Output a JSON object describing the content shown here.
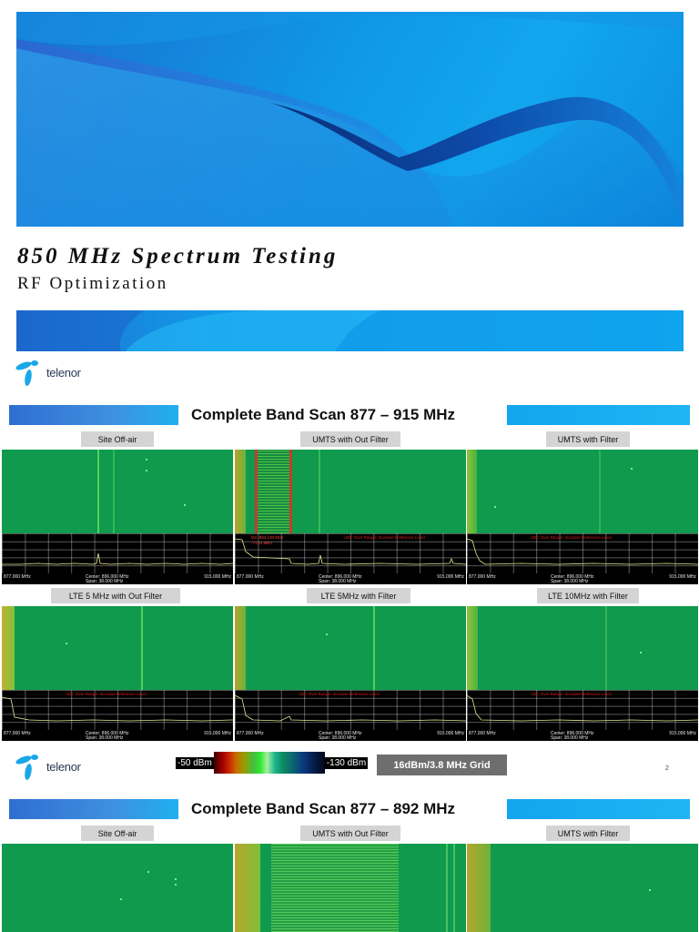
{
  "slide1": {
    "title": "850 MHz Spectrum Testing",
    "subtitle": "RF Optimization",
    "logo_text": "telenor"
  },
  "slide2": {
    "heading": "Complete Band Scan 877 – 915 MHz",
    "panels": [
      {
        "label": "Site Off-air",
        "start": "877.000 MHz",
        "center": "Center: 896.000 MHz",
        "span": "Span: 38.000 MHz",
        "stop": "915.000 MHz"
      },
      {
        "label": "UMTS with Out Filter",
        "start": "877.000 MHz",
        "center": "Center: 896.000 MHz",
        "span": "Span: 38.000 MHz",
        "stop": "915.000 MHz",
        "marker1": "M1: 894.130 MHz",
        "marker2": "-71.11 dBm",
        "warning": "ADC Over Range: Increase Reference Level"
      },
      {
        "label": "UMTS with Filter",
        "start": "877.000 MHz",
        "center": "Center: 896.000 MHz",
        "span": "Span: 38.000 MHz",
        "stop": "915.000 MHz",
        "warning": "ADC Over Range: Increase Reference Level"
      },
      {
        "label": "LTE 5 MHz with Out Filter",
        "start": "877.000 MHz",
        "center": "Center: 896.000 MHz",
        "span": "Span: 38.000 MHz",
        "stop": "915.000 MHz",
        "warning": "ADC Over Range: Increase Reference Level"
      },
      {
        "label": "LTE 5MHz with Filter",
        "start": "877.000 MHz",
        "center": "Center: 896.000 MHz",
        "span": "Span: 38.000 MHz",
        "stop": "915.000 MHz",
        "warning": "ADC Over Range: Increase Reference Level"
      },
      {
        "label": "LTE 10MHz with Filter",
        "start": "877.000 MHz",
        "center": "Center: 896.000 MHz",
        "span": "Span: 38.000 MHz",
        "stop": "915.000 MHz",
        "warning": "ADC Over Range: Increase Reference Level"
      }
    ],
    "scale_high": "-50 dBm",
    "scale_low": "-130 dBm",
    "grid_note": "16dBm/3.8 MHz Grid",
    "page_number": "2",
    "logo_text": "telenor"
  },
  "slide3": {
    "heading": "Complete Band Scan 877 – 892 MHz",
    "panels": [
      {
        "label": "Site Off-air"
      },
      {
        "label": "UMTS with Out Filter"
      },
      {
        "label": "UMTS with Filter"
      }
    ]
  },
  "colors": {
    "waterfall_green": "#0f9a4e",
    "accent_blue": "#12a6ee",
    "warning_red": "#d81c1c"
  }
}
